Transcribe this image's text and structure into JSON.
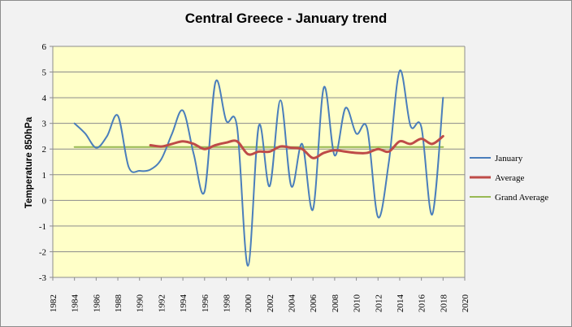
{
  "chart_data": {
    "type": "line",
    "title": "Central Greece - January trend",
    "xlabel": "",
    "ylabel": "Temperature 850hPa",
    "xlim": [
      1982,
      2020
    ],
    "ylim": [
      -3,
      6
    ],
    "x_ticks": [
      1982,
      1984,
      1986,
      1988,
      1990,
      1992,
      1994,
      1996,
      1998,
      2000,
      2002,
      2004,
      2006,
      2008,
      2010,
      2012,
      2014,
      2016,
      2018,
      2020
    ],
    "y_ticks": [
      -3,
      -2,
      -1,
      0,
      1,
      2,
      3,
      4,
      5,
      6
    ],
    "grid": "horizontal",
    "plot_background": "#ffffc8",
    "legend_position": "right",
    "series": [
      {
        "name": "January",
        "color": "#4a7ebb",
        "x": [
          1984,
          1985,
          1986,
          1987,
          1988,
          1989,
          1990,
          1991,
          1992,
          1993,
          1994,
          1995,
          1996,
          1997,
          1998,
          1999,
          2000,
          2001,
          2002,
          2003,
          2004,
          2005,
          2006,
          2007,
          2008,
          2009,
          2010,
          2011,
          2012,
          2013,
          2014,
          2015,
          2016,
          2017,
          2018
        ],
        "y": [
          3.0,
          2.6,
          2.05,
          2.5,
          3.3,
          1.3,
          1.15,
          1.2,
          1.6,
          2.6,
          3.5,
          1.8,
          0.35,
          4.6,
          3.1,
          2.85,
          -2.55,
          2.9,
          0.55,
          3.9,
          0.55,
          2.2,
          -0.35,
          4.4,
          1.75,
          3.6,
          2.6,
          2.8,
          -0.65,
          1.5,
          5.05,
          2.9,
          2.85,
          -0.55,
          4.0
        ]
      },
      {
        "name": "Average",
        "color": "#be4b48",
        "x": [
          1991,
          1992,
          1993,
          1994,
          1995,
          1996,
          1997,
          1998,
          1999,
          2000,
          2001,
          2002,
          2003,
          2004,
          2005,
          2006,
          2007,
          2008,
          2009,
          2010,
          2011,
          2012,
          2013,
          2014,
          2015,
          2016,
          2017,
          2018
        ],
        "y": [
          2.15,
          2.1,
          2.2,
          2.3,
          2.2,
          2.0,
          2.15,
          2.25,
          2.3,
          1.8,
          1.9,
          1.9,
          2.1,
          2.05,
          2.0,
          1.65,
          1.85,
          1.95,
          1.9,
          1.85,
          1.85,
          2.0,
          1.9,
          2.3,
          2.2,
          2.4,
          2.2,
          2.5
        ]
      },
      {
        "name": "Grand Average",
        "color": "#98b954",
        "x": [
          1984,
          2018
        ],
        "y": [
          2.08,
          2.08
        ]
      }
    ]
  }
}
